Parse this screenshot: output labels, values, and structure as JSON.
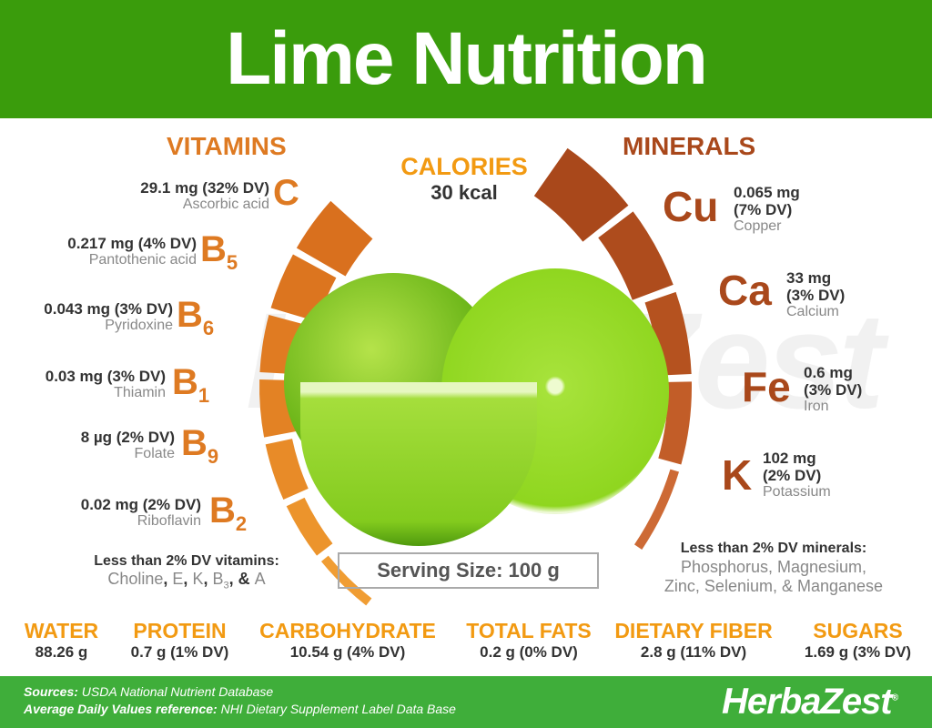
{
  "title": "Lime Nutrition",
  "watermark": "HerbaZest",
  "vitamins": {
    "title": "VITAMINS",
    "color": "#de7a22",
    "items": [
      {
        "symbol": "C",
        "sub": "",
        "amount": "29.1 mg (32% DV)",
        "name": "Ascorbic acid"
      },
      {
        "symbol": "B",
        "sub": "5",
        "amount": "0.217 mg (4% DV)",
        "name": "Pantothenic acid"
      },
      {
        "symbol": "B",
        "sub": "6",
        "amount": "0.043 mg (3% DV)",
        "name": "Pyridoxine"
      },
      {
        "symbol": "B",
        "sub": "1",
        "amount": "0.03 mg (3% DV)",
        "name": "Thiamin"
      },
      {
        "symbol": "B",
        "sub": "9",
        "amount": "8 µg (2% DV)",
        "name": "Folate"
      },
      {
        "symbol": "B",
        "sub": "2",
        "amount": "0.02 mg (2% DV)",
        "name": "Riboflavin"
      }
    ],
    "less_title": "Less than 2% DV vitamins:",
    "less": [
      "Choline",
      ", ",
      "E",
      ", ",
      "K",
      ", ",
      "B",
      "3",
      ", & ",
      "A"
    ]
  },
  "calories": {
    "title": "CALORIES",
    "value": "30 kcal"
  },
  "minerals": {
    "title": "MINERALS",
    "color": "#a9481b",
    "items": [
      {
        "symbol": "Cu",
        "amount": "0.065 mg",
        "dv": "(7% DV)",
        "name": "Copper"
      },
      {
        "symbol": "Ca",
        "amount": "33 mg",
        "dv": "(3% DV)",
        "name": "Calcium"
      },
      {
        "symbol": "Fe",
        "amount": "0.6 mg",
        "dv": "(3% DV)",
        "name": "Iron"
      },
      {
        "symbol": "K",
        "amount": "102 mg",
        "dv": "(2% DV)",
        "name": "Potassium"
      }
    ],
    "less_title": "Less than 2% DV minerals:",
    "less_line1": "Phosphorus, Magnesium,",
    "less_line2": "Zinc, Selenium, & Manganese"
  },
  "serving": "Serving Size: 100 g",
  "macros": [
    {
      "title": "WATER",
      "value": "88.26 g"
    },
    {
      "title": "PROTEIN",
      "value": "0.7 g (1% DV)"
    },
    {
      "title": "CARBOHYDRATE",
      "value": "10.54 g (4% DV)"
    },
    {
      "title": "TOTAL FATS",
      "value": "0.2 g (0% DV)"
    },
    {
      "title": "DIETARY FIBER",
      "value": "2.8 g (11% DV)"
    },
    {
      "title": "SUGARS",
      "value": "1.69 g (3% DV)"
    }
  ],
  "footer": {
    "sources_label": "Sources:",
    "sources": " USDA National Nutrient Database",
    "ref_label": "Average Daily Values reference:",
    "ref": " NHI Dietary Supplement Label Data Base",
    "logo": "HerbaZest",
    "logo_mark": "®"
  }
}
